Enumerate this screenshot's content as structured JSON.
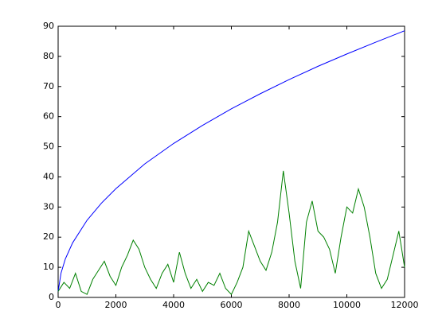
{
  "chart_data": {
    "type": "line",
    "xlim": [
      0,
      12000
    ],
    "xticks": [
      0,
      2000,
      4000,
      6000,
      8000,
      10000,
      12000
    ],
    "ylim": [
      0,
      90
    ],
    "yticks": [
      0,
      10,
      20,
      30,
      40,
      50,
      60,
      70,
      80,
      90
    ],
    "series": [
      {
        "color": "#0000ff",
        "x": [
          0,
          100,
          250,
          500,
          1000,
          1500,
          2000,
          3000,
          4000,
          5000,
          6000,
          7000,
          8000,
          9000,
          10000,
          11000,
          12000
        ],
        "values": [
          2,
          8.1,
          12.8,
          18.1,
          25.6,
          31.3,
          36.1,
          44.3,
          51.1,
          57.1,
          62.6,
          67.6,
          72.3,
          76.7,
          80.8,
          84.7,
          88.5
        ]
      },
      {
        "color": "#008000",
        "x": [
          0,
          200,
          400,
          600,
          800,
          1000,
          1200,
          1400,
          1600,
          1800,
          2000,
          2200,
          2400,
          2600,
          2800,
          3000,
          3200,
          3400,
          3600,
          3800,
          4000,
          4200,
          4400,
          4600,
          4800,
          5000,
          5200,
          5400,
          5600,
          5800,
          6000,
          6200,
          6400,
          6600,
          6800,
          7000,
          7200,
          7400,
          7600,
          7800,
          8000,
          8200,
          8400,
          8600,
          8800,
          9000,
          9200,
          9400,
          9600,
          9800,
          10000,
          10200,
          10400,
          10600,
          10800,
          11000,
          11200,
          11400,
          11600,
          11800,
          12000
        ],
        "values": [
          2,
          5,
          3,
          8,
          2,
          1,
          6,
          9,
          12,
          7,
          4,
          10,
          14,
          19,
          16,
          10,
          6,
          3,
          8,
          11,
          5,
          15,
          8,
          3,
          6,
          2,
          5,
          4,
          8,
          3,
          1,
          5,
          10,
          22,
          17,
          12,
          9,
          15,
          25,
          42,
          28,
          12,
          3,
          25,
          32,
          22,
          20,
          16,
          8,
          20,
          30,
          28,
          36,
          30,
          20,
          8,
          3,
          6,
          14,
          22,
          10
        ]
      }
    ]
  }
}
